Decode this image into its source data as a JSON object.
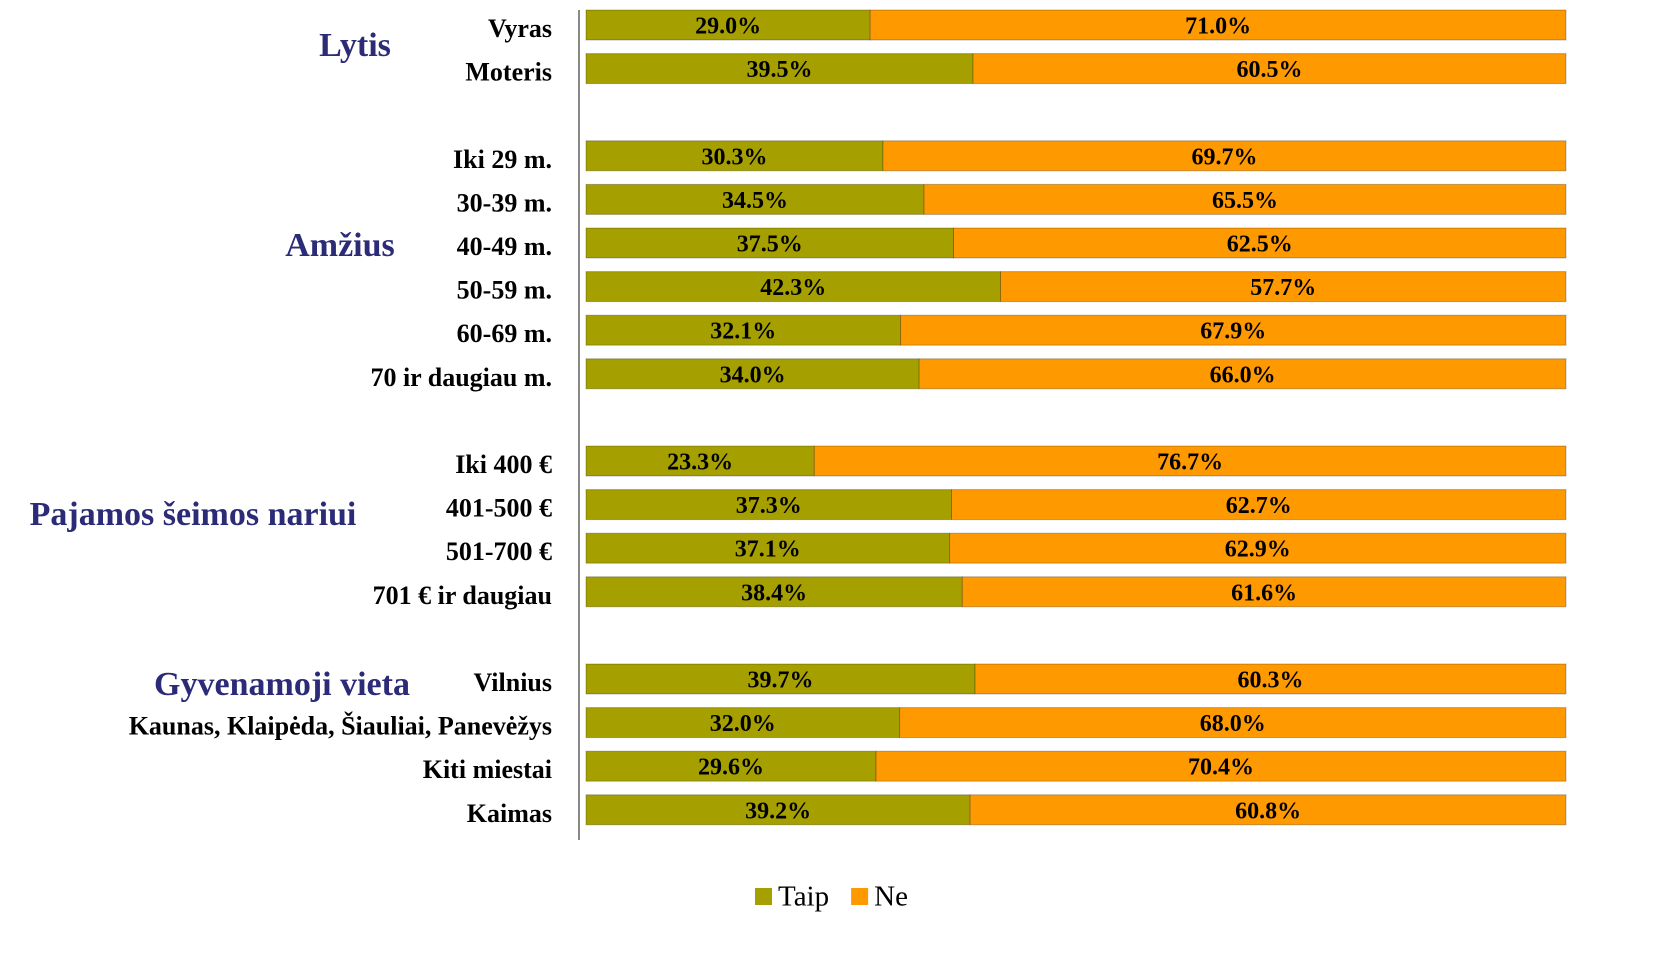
{
  "chart_data": {
    "type": "stacked_bar_horizontal",
    "categories": [
      "Vyras",
      "Moteris",
      null,
      "Iki 29 m.",
      "30-39 m.",
      "40-49 m.",
      "50-59 m.",
      "60-69 m.",
      "70 ir daugiau m.",
      null,
      "Iki 400 €",
      "401-500 €",
      "501-700 €",
      "701 € ir daugiau",
      null,
      "Vilnius",
      "Kaunas, Klaipėda, Šiauliai, Panevėžys",
      "Kiti miestai",
      "Kaimas"
    ],
    "groups": [
      "Lytis",
      "Amžius",
      "Pajamos šeimos nariui",
      "Gyvenamoji vieta"
    ],
    "series": [
      {
        "name": "Taip",
        "color": "#a5a000",
        "values": [
          29.0,
          39.5,
          null,
          30.3,
          34.5,
          37.5,
          42.3,
          32.1,
          34.0,
          null,
          23.3,
          37.3,
          37.1,
          38.4,
          null,
          39.7,
          32.0,
          29.6,
          39.2
        ],
        "value_labels": [
          "29.0%",
          "39.5%",
          null,
          "30.3%",
          "34.5%",
          "37.5%",
          "42.3%",
          "32.1%",
          "34.0%",
          null,
          "23.3%",
          "37.3%",
          "37.1%",
          "38.4%",
          null,
          "39.7%",
          "32.0%",
          "29.6%",
          "39.2%"
        ]
      },
      {
        "name": "Ne",
        "color": "#ff9900",
        "values": [
          71.0,
          60.5,
          null,
          69.7,
          65.5,
          62.5,
          57.7,
          67.9,
          66.0,
          null,
          76.7,
          62.7,
          62.9,
          61.6,
          null,
          60.3,
          68.0,
          70.4,
          60.8
        ],
        "value_labels": [
          "71.0%",
          "60.5%",
          null,
          "69.7%",
          "65.5%",
          "62.5%",
          "57.7%",
          "67.9%",
          "66.0%",
          null,
          "76.7%",
          "62.7%",
          "62.9%",
          "61.6%",
          null,
          "60.3%",
          "68.0%",
          "70.4%",
          "60.8%"
        ]
      }
    ],
    "xlim": [
      0,
      100
    ],
    "legend": "bottom"
  }
}
